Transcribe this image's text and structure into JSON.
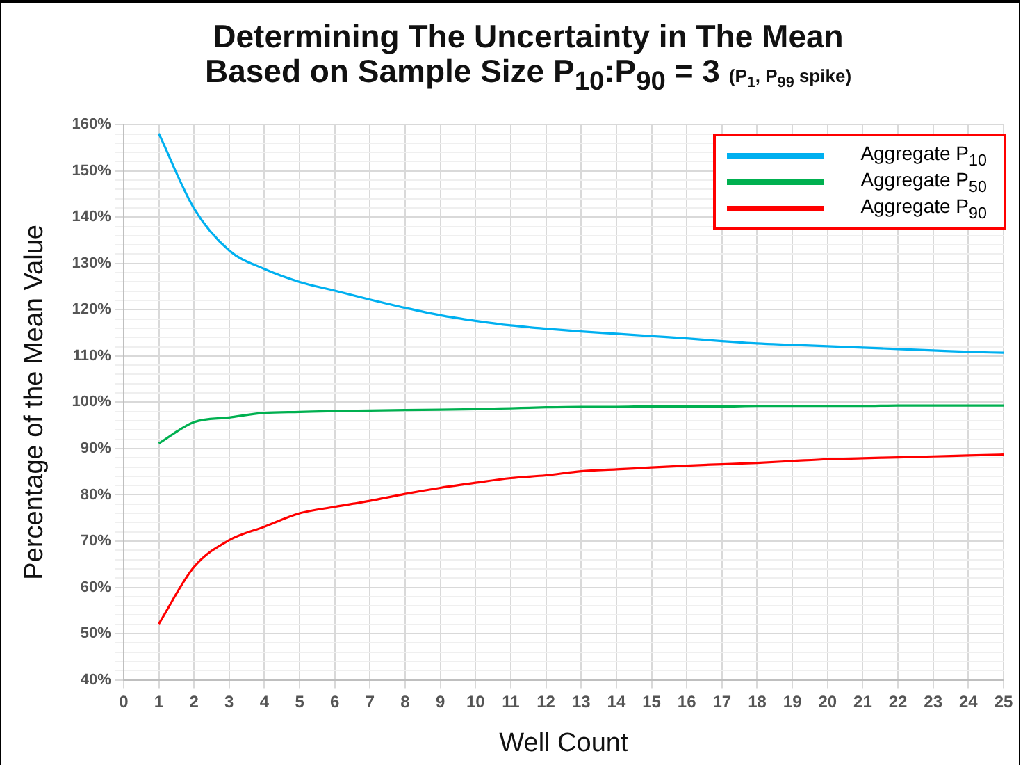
{
  "chart_data": {
    "type": "line",
    "title": "Determining The Uncertainty in The Mean Based on Sample Size P$_{10}$:P$_{90}$ = 3",
    "subtitle": "(P$_{1}$, P$_{99}$ spike)",
    "xlabel": "Well Count",
    "ylabel": "Percentage of the Mean Value",
    "x": [
      1,
      2,
      3,
      4,
      5,
      6,
      7,
      8,
      9,
      10,
      11,
      12,
      13,
      14,
      15,
      16,
      17,
      18,
      19,
      20,
      21,
      22,
      23,
      24,
      25
    ],
    "series": [
      {
        "name": "Aggregate P$_{10}$",
        "color": "#00b0f0",
        "values": [
          158.1,
          141.9,
          132.8,
          128.8,
          126,
          124.1,
          122.2,
          120.4,
          118.8,
          117.6,
          116.6,
          115.9,
          115.3,
          114.8,
          114.3,
          113.8,
          113.2,
          112.7,
          112.4,
          112.1,
          111.8,
          111.5,
          111.2,
          110.9,
          110.7
        ]
      },
      {
        "name": "Aggregate P$_{50}$",
        "color": "#00b050",
        "values": [
          91.1,
          95.7,
          96.7,
          97.7,
          97.9,
          98.1,
          98.2,
          98.3,
          98.4,
          98.5,
          98.7,
          98.9,
          99,
          99,
          99.1,
          99.1,
          99.1,
          99.2,
          99.2,
          99.2,
          99.2,
          99.3,
          99.3,
          99.3,
          99.3
        ]
      },
      {
        "name": "Aggregate P$_{90}$",
        "color": "#ff0000",
        "values": [
          52.1,
          64.4,
          70.2,
          73.1,
          76,
          77.4,
          78.7,
          80.2,
          81.5,
          82.6,
          83.6,
          84.2,
          85.1,
          85.5,
          85.9,
          86.3,
          86.6,
          86.9,
          87.3,
          87.7,
          87.9,
          88.1,
          88.3,
          88.5,
          88.7
        ]
      }
    ],
    "xlim": [
      0,
      25
    ],
    "xticks": [
      0,
      1,
      2,
      3,
      4,
      5,
      6,
      7,
      8,
      9,
      10,
      11,
      12,
      13,
      14,
      15,
      16,
      17,
      18,
      19,
      20,
      21,
      22,
      23,
      24,
      25
    ],
    "ylim": [
      40,
      160
    ],
    "yticks": [
      {
        "value": 40,
        "label": "40%"
      },
      {
        "value": 42,
        "label": null
      },
      {
        "value": 44,
        "label": null
      },
      {
        "value": 46,
        "label": null
      },
      {
        "value": 48,
        "label": null
      },
      {
        "value": 50,
        "label": "50%"
      },
      {
        "value": 52,
        "label": null
      },
      {
        "value": 54,
        "label": null
      },
      {
        "value": 56,
        "label": null
      },
      {
        "value": 58,
        "label": null
      },
      {
        "value": 60,
        "label": "60%"
      },
      {
        "value": 62,
        "label": null
      },
      {
        "value": 64,
        "label": null
      },
      {
        "value": 66,
        "label": null
      },
      {
        "value": 68,
        "label": null
      },
      {
        "value": 70,
        "label": "70%"
      },
      {
        "value": 72,
        "label": null
      },
      {
        "value": 74,
        "label": null
      },
      {
        "value": 76,
        "label": null
      },
      {
        "value": 78,
        "label": null
      },
      {
        "value": 80,
        "label": "80%"
      },
      {
        "value": 82,
        "label": null
      },
      {
        "value": 84,
        "label": null
      },
      {
        "value": 86,
        "label": null
      },
      {
        "value": 88,
        "label": null
      },
      {
        "value": 90,
        "label": "90%"
      },
      {
        "value": 92,
        "label": null
      },
      {
        "value": 94,
        "label": null
      },
      {
        "value": 96,
        "label": null
      },
      {
        "value": 98,
        "label": null
      },
      {
        "value": 100,
        "label": "100%"
      },
      {
        "value": 102,
        "label": null
      },
      {
        "value": 104,
        "label": null
      },
      {
        "value": 106,
        "label": null
      },
      {
        "value": 108,
        "label": null
      },
      {
        "value": 110,
        "label": "110%"
      },
      {
        "value": 112,
        "label": null
      },
      {
        "value": 114,
        "label": null
      },
      {
        "value": 116,
        "label": null
      },
      {
        "value": 118,
        "label": null
      },
      {
        "value": 120,
        "label": "120%"
      },
      {
        "value": 122,
        "label": null
      },
      {
        "value": 124,
        "label": null
      },
      {
        "value": 126,
        "label": null
      },
      {
        "value": 128,
        "label": null
      },
      {
        "value": 130,
        "label": "130%"
      },
      {
        "value": 132,
        "label": null
      },
      {
        "value": 134,
        "label": null
      },
      {
        "value": 136,
        "label": null
      },
      {
        "value": 138,
        "label": null
      },
      {
        "value": 140,
        "label": "140%"
      },
      {
        "value": 142,
        "label": null
      },
      {
        "value": 144,
        "label": null
      },
      {
        "value": 146,
        "label": null
      },
      {
        "value": 148,
        "label": null
      },
      {
        "value": 150,
        "label": "150%"
      },
      {
        "value": 152,
        "label": null
      },
      {
        "value": 154,
        "label": null
      },
      {
        "value": 156,
        "label": null
      },
      {
        "value": 158,
        "label": null
      },
      {
        "value": 160,
        "label": "160%"
      }
    ],
    "grid": true,
    "legend": "top right",
    "marker": "none",
    "line_style": "solid"
  }
}
